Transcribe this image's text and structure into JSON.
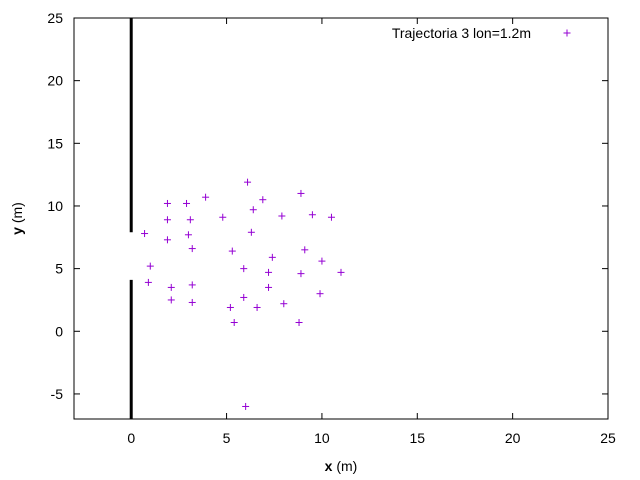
{
  "chart_data": {
    "type": "scatter",
    "title": "",
    "xlabel_bold": "x",
    "xlabel_unit": " (m)",
    "ylabel_bold": "y",
    "ylabel_unit": " (m)",
    "xlim": [
      -3,
      25
    ],
    "ylim": [
      -7,
      25
    ],
    "xticks": [
      0,
      5,
      10,
      15,
      20,
      25
    ],
    "yticks": [
      -5,
      0,
      5,
      10,
      15,
      20,
      25
    ],
    "legend_position": "top-right",
    "wall": {
      "x": 0,
      "segments": [
        [
          -7,
          4.1
        ],
        [
          7.9,
          25
        ]
      ]
    },
    "series": [
      {
        "name": "Trajectoria 3 lon=1.2m",
        "color": "#9400d3",
        "marker": "+",
        "points": [
          [
            0.7,
            7.8
          ],
          [
            1.0,
            5.2
          ],
          [
            0.9,
            3.9
          ],
          [
            1.9,
            10.2
          ],
          [
            1.9,
            8.9
          ],
          [
            1.9,
            7.3
          ],
          [
            2.1,
            3.5
          ],
          [
            2.1,
            2.5
          ],
          [
            2.9,
            10.2
          ],
          [
            3.1,
            8.9
          ],
          [
            3.0,
            7.7
          ],
          [
            3.2,
            6.6
          ],
          [
            3.2,
            3.7
          ],
          [
            3.2,
            2.3
          ],
          [
            3.9,
            10.7
          ],
          [
            4.8,
            9.1
          ],
          [
            5.3,
            6.4
          ],
          [
            5.2,
            1.9
          ],
          [
            5.4,
            0.7
          ],
          [
            6.1,
            11.9
          ],
          [
            6.4,
            9.7
          ],
          [
            6.3,
            7.9
          ],
          [
            5.9,
            5.0
          ],
          [
            5.9,
            2.7
          ],
          [
            6.0,
            -6.0
          ],
          [
            6.6,
            1.9
          ],
          [
            6.9,
            10.5
          ],
          [
            7.4,
            5.9
          ],
          [
            7.2,
            4.7
          ],
          [
            7.2,
            3.5
          ],
          [
            7.9,
            9.2
          ],
          [
            8.0,
            2.2
          ],
          [
            8.9,
            11.0
          ],
          [
            9.1,
            6.5
          ],
          [
            8.9,
            4.6
          ],
          [
            8.8,
            0.7
          ],
          [
            9.5,
            9.3
          ],
          [
            10.0,
            5.6
          ],
          [
            9.9,
            3.0
          ],
          [
            10.5,
            9.1
          ],
          [
            11.0,
            4.7
          ]
        ]
      }
    ]
  }
}
